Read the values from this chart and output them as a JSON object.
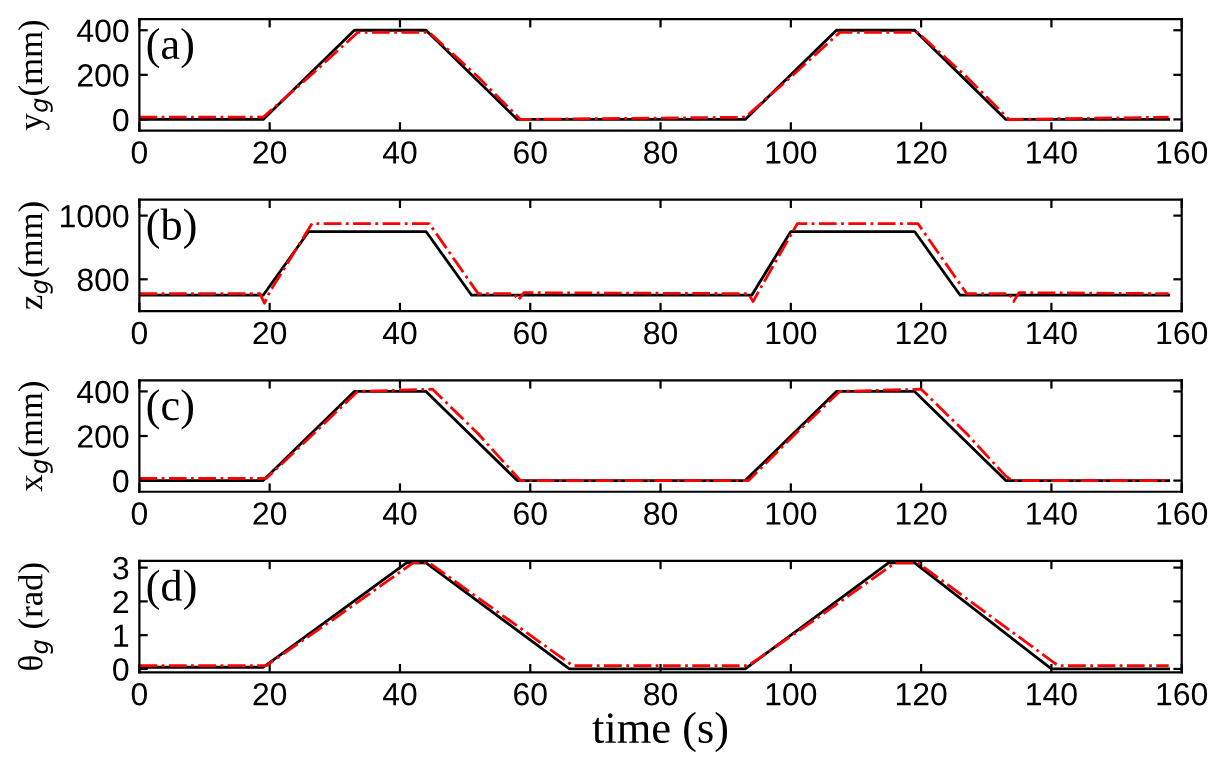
{
  "chart_data": [
    {
      "type": "line",
      "ylabel": "y$_{g}$(mm)",
      "annotations": [
        "(a)"
      ],
      "xlim": [
        0,
        160
      ],
      "xticks": [
        0,
        20,
        40,
        60,
        80,
        100,
        120,
        140,
        160
      ],
      "ylim": [
        -50,
        450
      ],
      "yticks": [
        0,
        200,
        400
      ],
      "grid": false,
      "legend": false,
      "series": [
        {
          "color": "#000000",
          "line_style": "solid",
          "x": [
            0,
            19,
            33,
            44,
            58,
            93,
            107,
            119,
            133,
            158
          ],
          "values": [
            0,
            0,
            400,
            400,
            0,
            0,
            400,
            400,
            0,
            0
          ]
        },
        {
          "color": "#ff0000",
          "line_style": "dashdot",
          "x": [
            0,
            19,
            26,
            33.5,
            44.5,
            52,
            58.5,
            93,
            100,
            107.5,
            119.5,
            127,
            133.5,
            158
          ],
          "values": [
            10,
            10,
            190,
            390,
            390,
            190,
            0,
            10,
            190,
            390,
            390,
            190,
            0,
            10
          ]
        }
      ]
    },
    {
      "type": "line",
      "ylabel": "z$_{g}$(mm)",
      "annotations": [
        "(b)"
      ],
      "xlim": [
        0,
        160
      ],
      "xticks": [
        0,
        20,
        40,
        60,
        80,
        100,
        120,
        140,
        160
      ],
      "ylim": [
        700,
        1050
      ],
      "yticks": [
        800,
        1000
      ],
      "grid": false,
      "legend": false,
      "series": [
        {
          "color": "#000000",
          "line_style": "solid",
          "x": [
            0,
            19,
            26,
            44,
            51,
            94,
            100,
            119,
            126,
            158
          ],
          "values": [
            750,
            750,
            950,
            950,
            750,
            750,
            950,
            950,
            750,
            750
          ]
        },
        {
          "color": "#ff0000",
          "line_style": "dashdot",
          "x": [
            0,
            18.5,
            19.2,
            20,
            26.5,
            44.5,
            52,
            57.5,
            58.2,
            59,
            93.5,
            94.2,
            95,
            101,
            119.5,
            127,
            133.5,
            134.2,
            135,
            158
          ],
          "values": [
            755,
            755,
            725,
            760,
            975,
            975,
            755,
            755,
            735,
            758,
            755,
            730,
            760,
            975,
            975,
            755,
            755,
            730,
            758,
            755
          ]
        }
      ]
    },
    {
      "type": "line",
      "ylabel": "x$_{g}$(mm)",
      "annotations": [
        "(c)"
      ],
      "xlim": [
        0,
        160
      ],
      "xticks": [
        0,
        20,
        40,
        60,
        80,
        100,
        120,
        140,
        160
      ],
      "ylim": [
        -50,
        450
      ],
      "yticks": [
        0,
        200,
        400
      ],
      "grid": false,
      "legend": false,
      "series": [
        {
          "color": "#000000",
          "line_style": "solid",
          "x": [
            0,
            19,
            33,
            44,
            58,
            93,
            107,
            119,
            133,
            158
          ],
          "values": [
            0,
            0,
            400,
            400,
            0,
            0,
            400,
            400,
            0,
            0
          ]
        },
        {
          "color": "#ff0000",
          "line_style": "dashdot",
          "x": [
            0,
            19.5,
            26,
            33.5,
            45,
            52,
            58.5,
            93.5,
            100,
            107.5,
            120,
            127,
            133,
            134,
            158
          ],
          "values": [
            10,
            10,
            190,
            400,
            410,
            210,
            0,
            0,
            190,
            400,
            410,
            210,
            20,
            0,
            0
          ]
        }
      ]
    },
    {
      "type": "line",
      "ylabel": "θ$_{g}$ (rad)",
      "xlabel": "time (s)",
      "annotations": [
        "(d)"
      ],
      "xlim": [
        0,
        160
      ],
      "xticks": [
        0,
        20,
        40,
        60,
        80,
        100,
        120,
        140,
        160
      ],
      "ylim": [
        -0.1,
        3.2
      ],
      "yticks": [
        0,
        1,
        2,
        3
      ],
      "grid": false,
      "legend": false,
      "series": [
        {
          "color": "#000000",
          "line_style": "solid",
          "x": [
            0,
            19,
            41,
            44,
            66,
            93,
            115,
            119,
            140,
            158
          ],
          "values": [
            0.05,
            0.05,
            3.14,
            3.14,
            0,
            0,
            3.14,
            3.14,
            0,
            0
          ]
        },
        {
          "color": "#ff0000",
          "line_style": "dashdot",
          "x": [
            0,
            19.5,
            30,
            42,
            44.5,
            66.5,
            93.5,
            104,
            116,
            119.5,
            141,
            158
          ],
          "values": [
            0.1,
            0.1,
            1.5,
            3.14,
            3.14,
            0.1,
            0.1,
            1.5,
            3.14,
            3.14,
            0.1,
            0.1
          ]
        }
      ]
    }
  ]
}
